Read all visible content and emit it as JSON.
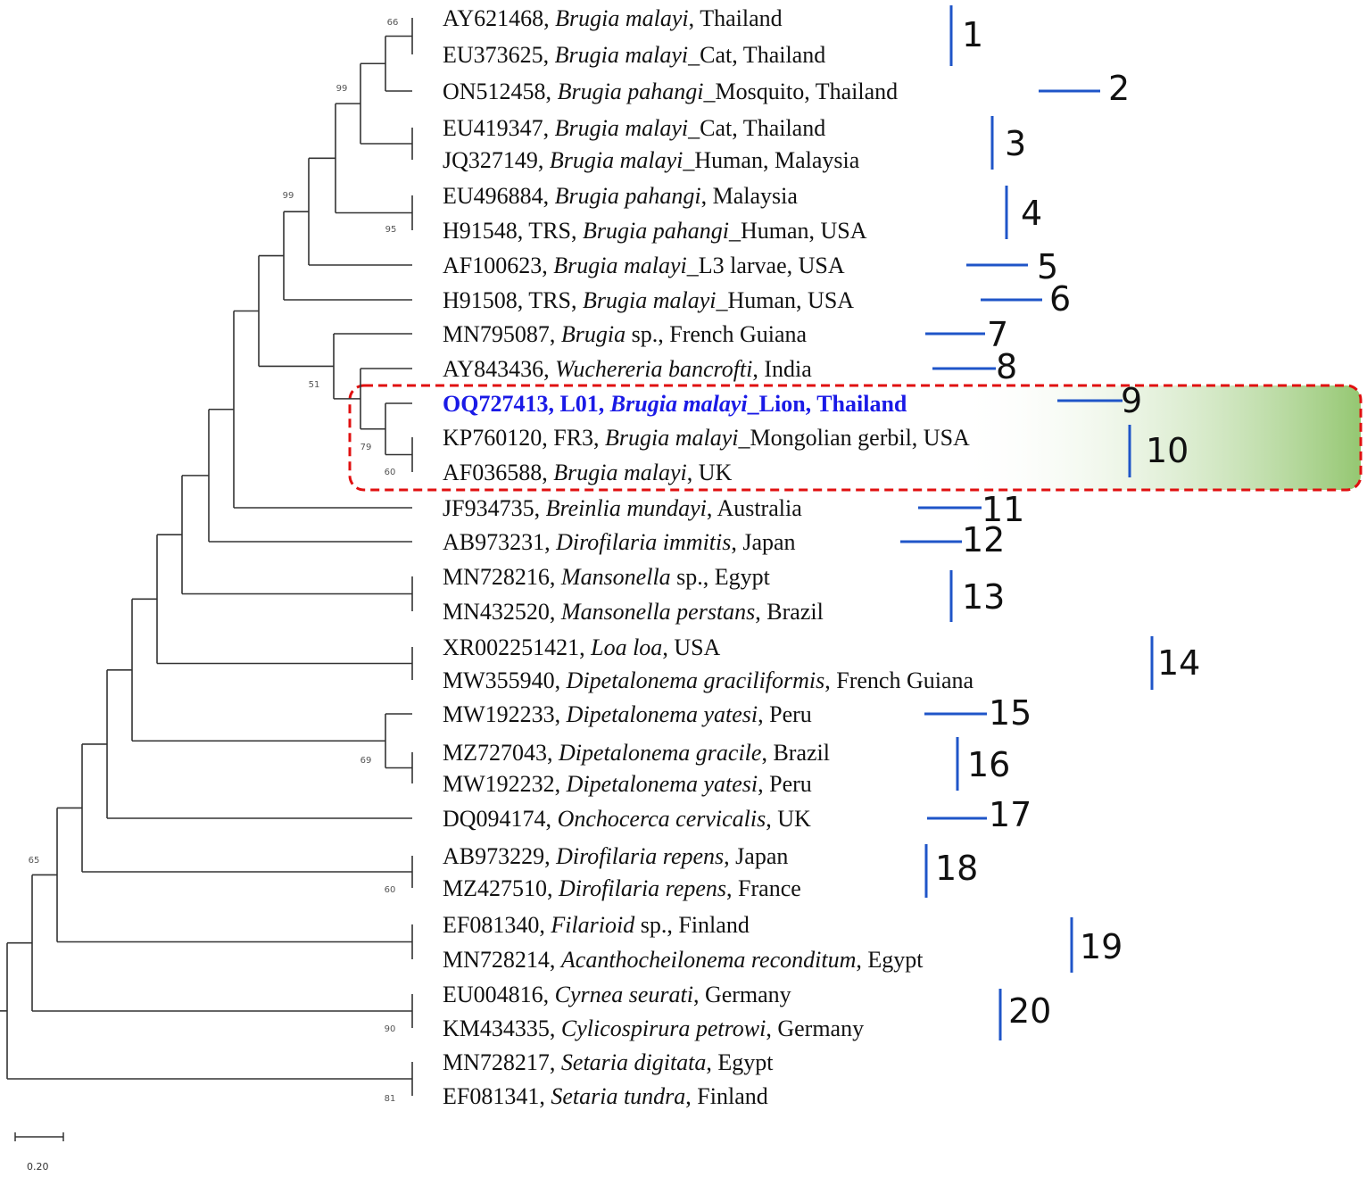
{
  "colors": {
    "branch": "#333333",
    "group_marker": "#1f55c8",
    "highlight_text": "#1a1ae6",
    "highlight_box_border": "#e01010",
    "highlight_fill": "#8fc46a"
  },
  "scale_bar": {
    "label": "0.20"
  },
  "leaves": [
    {
      "parts": [
        {
          "t": "AY621468, "
        },
        {
          "t": "Brugia malayi",
          "i": true
        },
        {
          "t": ", Thailand"
        }
      ]
    },
    {
      "parts": [
        {
          "t": "EU373625, "
        },
        {
          "t": "Brugia malayi",
          "i": true
        },
        {
          "t": "_Cat, Thailand"
        }
      ]
    },
    {
      "parts": [
        {
          "t": "ON512458, "
        },
        {
          "t": "Brugia pahangi",
          "i": true
        },
        {
          "t": "_Mosquito, Thailand"
        }
      ]
    },
    {
      "parts": [
        {
          "t": "EU419347, "
        },
        {
          "t": "Brugia malayi",
          "i": true
        },
        {
          "t": "_Cat, Thailand"
        }
      ]
    },
    {
      "parts": [
        {
          "t": "JQ327149, "
        },
        {
          "t": "Brugia malayi",
          "i": true
        },
        {
          "t": "_Human, Malaysia"
        }
      ]
    },
    {
      "parts": [
        {
          "t": "EU496884, "
        },
        {
          "t": "Brugia pahangi",
          "i": true
        },
        {
          "t": ", Malaysia"
        }
      ]
    },
    {
      "parts": [
        {
          "t": "H91548, TRS, "
        },
        {
          "t": "Brugia pahangi",
          "i": true
        },
        {
          "t": "_Human, USA"
        }
      ]
    },
    {
      "parts": [
        {
          "t": "AF100623, "
        },
        {
          "t": "Brugia malayi",
          "i": true
        },
        {
          "t": "_L3 larvae, USA"
        }
      ]
    },
    {
      "parts": [
        {
          "t": "H91508, TRS, "
        },
        {
          "t": "Brugia malayi",
          "i": true
        },
        {
          "t": "_Human, USA"
        }
      ]
    },
    {
      "parts": [
        {
          "t": "MN795087, "
        },
        {
          "t": "Brugia",
          "i": true
        },
        {
          "t": " sp., French Guiana"
        }
      ]
    },
    {
      "parts": [
        {
          "t": "AY843436, "
        },
        {
          "t": "Wuchereria bancrofti",
          "i": true
        },
        {
          "t": ", India"
        }
      ]
    },
    {
      "parts": [
        {
          "t": "OQ727413, L01, "
        },
        {
          "t": "Brugia malayi",
          "i": true
        },
        {
          "t": "_Lion, Thailand"
        }
      ],
      "highlight": true
    },
    {
      "parts": [
        {
          "t": "KP760120, FR3, "
        },
        {
          "t": "Brugia malayi",
          "i": true
        },
        {
          "t": "_Mongolian gerbil, USA"
        }
      ]
    },
    {
      "parts": [
        {
          "t": "AF036588, "
        },
        {
          "t": "Brugia malayi",
          "i": true
        },
        {
          "t": ", UK"
        }
      ]
    },
    {
      "parts": [
        {
          "t": "JF934735, "
        },
        {
          "t": "Breinlia mundayi",
          "i": true
        },
        {
          "t": ", Australia"
        }
      ]
    },
    {
      "parts": [
        {
          "t": "AB973231, "
        },
        {
          "t": "Dirofilaria immitis",
          "i": true
        },
        {
          "t": ", Japan"
        }
      ]
    },
    {
      "parts": [
        {
          "t": "MN728216, "
        },
        {
          "t": "Mansonella",
          "i": true
        },
        {
          "t": " sp., Egypt"
        }
      ]
    },
    {
      "parts": [
        {
          "t": "MN432520, "
        },
        {
          "t": "Mansonella perstans",
          "i": true
        },
        {
          "t": ", Brazil"
        }
      ]
    },
    {
      "parts": [
        {
          "t": "XR002251421, "
        },
        {
          "t": "Loa loa",
          "i": true
        },
        {
          "t": ", USA"
        }
      ]
    },
    {
      "parts": [
        {
          "t": "MW355940, "
        },
        {
          "t": "Dipetalonema graciliformis",
          "i": true
        },
        {
          "t": ", French Guiana"
        }
      ]
    },
    {
      "parts": [
        {
          "t": "MW192233, "
        },
        {
          "t": "Dipetalonema yatesi",
          "i": true
        },
        {
          "t": ", Peru"
        }
      ]
    },
    {
      "parts": [
        {
          "t": "MZ727043, "
        },
        {
          "t": "Dipetalonema gracile",
          "i": true
        },
        {
          "t": ", Brazil"
        }
      ]
    },
    {
      "parts": [
        {
          "t": "MW192232, "
        },
        {
          "t": "Dipetalonema yatesi",
          "i": true
        },
        {
          "t": ", Peru"
        }
      ]
    },
    {
      "parts": [
        {
          "t": "DQ094174, "
        },
        {
          "t": "Onchocerca cervicalis",
          "i": true
        },
        {
          "t": ", UK"
        }
      ]
    },
    {
      "parts": [
        {
          "t": "AB973229, "
        },
        {
          "t": "Dirofilaria repens",
          "i": true
        },
        {
          "t": ", Japan"
        }
      ]
    },
    {
      "parts": [
        {
          "t": "MZ427510, "
        },
        {
          "t": "Dirofilaria repens",
          "i": true
        },
        {
          "t": ", France"
        }
      ]
    },
    {
      "parts": [
        {
          "t": "EF081340, "
        },
        {
          "t": "Filarioid",
          "i": true
        },
        {
          "t": " sp., Finland"
        }
      ]
    },
    {
      "parts": [
        {
          "t": "MN728214, "
        },
        {
          "t": "Acanthocheilonema reconditum",
          "i": true
        },
        {
          "t": ", Egypt"
        }
      ]
    },
    {
      "parts": [
        {
          "t": "EU004816, "
        },
        {
          "t": "Cyrnea seurati",
          "i": true
        },
        {
          "t": ", Germany"
        }
      ]
    },
    {
      "parts": [
        {
          "t": "KM434335, "
        },
        {
          "t": "Cylicospirura petrowi",
          "i": true
        },
        {
          "t": ", Germany"
        }
      ]
    },
    {
      "parts": [
        {
          "t": "MN728217, "
        },
        {
          "t": "Setaria digitata",
          "i": true
        },
        {
          "t": ", Egypt"
        }
      ]
    },
    {
      "parts": [
        {
          "t": "EF081341, "
        },
        {
          "t": "Setaria tundra",
          "i": true
        },
        {
          "t": ", Finland"
        }
      ]
    }
  ],
  "bootstrap_values": [
    "66",
    "99",
    "99",
    "95",
    "51",
    "79",
    "60",
    "69",
    "65",
    "60",
    "90",
    "81"
  ],
  "groups": [
    "1",
    "2",
    "3",
    "4",
    "5",
    "6",
    "7",
    "8",
    "9",
    "10",
    "11",
    "12",
    "13",
    "14",
    "15",
    "16",
    "17",
    "18",
    "19",
    "20"
  ]
}
